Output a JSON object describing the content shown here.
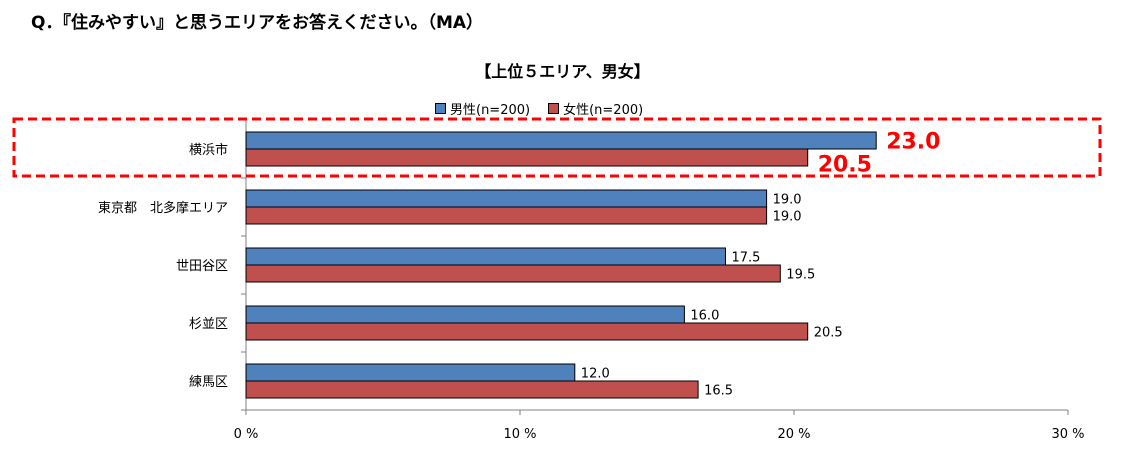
{
  "question": "Q．『住みやすい』と思うエリアをお答えください。（MA）",
  "subtitle": "【上位５エリア、男女】",
  "chart_data": {
    "type": "bar",
    "orientation": "horizontal",
    "categories": [
      "横浜市",
      "東京都　北多摩エリア",
      "世田谷区",
      "杉並区",
      "練馬区"
    ],
    "series": [
      {
        "name": "男性(n=200)",
        "color": "#4f81bd",
        "values": [
          23.0,
          19.0,
          17.5,
          16.0,
          12.0
        ]
      },
      {
        "name": "女性(n=200)",
        "color": "#c0504d",
        "values": [
          20.5,
          19.0,
          19.5,
          20.5,
          16.5
        ]
      }
    ],
    "xlim": [
      0,
      30
    ],
    "xticks": [
      "0 %",
      "10 %",
      "20 %",
      "30 %"
    ],
    "highlight_category": "横浜市",
    "highlight_color": "#ff0000",
    "legend_position": "top"
  }
}
